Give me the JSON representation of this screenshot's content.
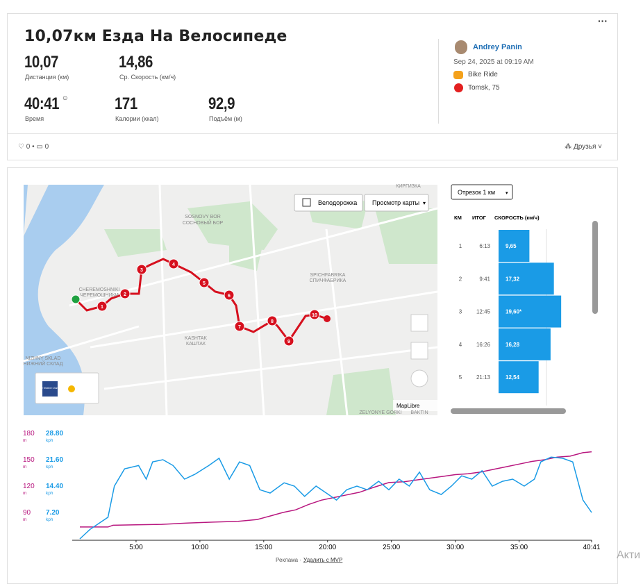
{
  "activity": {
    "title": "10,07км Езда На Велосипеде",
    "stats": [
      {
        "value": "10,07",
        "label": "Дистанция (км)"
      },
      {
        "value": "14,86",
        "label": "Ср. Скорость (км/ч)"
      },
      {
        "value": "40:41",
        "label": "Время"
      },
      {
        "value": "171",
        "label": "Калории (ккал)"
      },
      {
        "value": "92,9",
        "label": "Подъём (м)"
      }
    ]
  },
  "athlete": {
    "name": "Andrey Panin",
    "date": "Sep 24, 2025 at 09:19 AM",
    "sport": "Bike Ride",
    "location": "Tomsk, 75"
  },
  "social": {
    "likes": "0",
    "comments": "0",
    "visibility": "Друзья"
  },
  "map": {
    "buttons": [
      "Велодорожка",
      "Просмотр карты"
    ],
    "places": [
      "КИРГИЗКА",
      "SOSNOVY BOR",
      "СОСНОВЫЙ БОР",
      "CHEREMOSHNIKI",
      "ЧЕРЕМОШНИКИ",
      "SPICHFABRIKA",
      "СПИЧФАБРИКА",
      "KASHTAK",
      "КАШТАК",
      "NIZHNY SKLAD",
      "НИЖНИЙ СКЛАД",
      "ZELYONYE GORKI",
      "BAKTIN"
    ],
    "markers": [
      "1",
      "2",
      "3",
      "4",
      "5",
      "6",
      "7",
      "8",
      "9",
      "10"
    ],
    "weather": "The Weather Channel",
    "attribution": "MapLibre"
  },
  "splits": {
    "selector": "Отрезок 1 км",
    "headers": [
      "КМ",
      "ИТОГ",
      "СКОРОСТЬ (км/ч)"
    ],
    "rows": [
      {
        "km": "1",
        "time": "6:13",
        "speed": 9.65,
        "speed_label": "9,65"
      },
      {
        "km": "2",
        "time": "9:41",
        "speed": 17.32,
        "speed_label": "17,32"
      },
      {
        "km": "3",
        "time": "12:45",
        "speed": 19.6,
        "speed_label": "19,60*"
      },
      {
        "km": "4",
        "time": "16:26",
        "speed": 16.28,
        "speed_label": "16,28"
      },
      {
        "km": "5",
        "time": "21:13",
        "speed": 12.54,
        "speed_label": "12,54"
      }
    ]
  },
  "chart_data": {
    "type": "line",
    "y_unit": "m",
    "y2_unit": "kph",
    "xlim": [
      0,
      40.68
    ],
    "xticks": [
      {
        "value": 5,
        "label": "5:00"
      },
      {
        "value": 10,
        "label": "10:00"
      },
      {
        "value": 15,
        "label": "15:00"
      },
      {
        "value": 20,
        "label": "20:00"
      },
      {
        "value": 25,
        "label": "25:00"
      },
      {
        "value": 30,
        "label": "30:00"
      },
      {
        "value": 35,
        "label": "35:00"
      },
      {
        "value": 40.68,
        "label": "40:41"
      }
    ],
    "ylim": [
      60,
      180
    ],
    "yticks": [
      90,
      120,
      150,
      180
    ],
    "y2lim": [
      0,
      28.8
    ],
    "y2ticks": [
      {
        "value": 7.2,
        "label": "7.20"
      },
      {
        "value": 14.4,
        "label": "14.40"
      },
      {
        "value": 21.6,
        "label": "21.60"
      },
      {
        "value": 28.8,
        "label": "28.80"
      }
    ],
    "series": [
      {
        "color": "#b8177f",
        "x": [
          0.6,
          2.8,
          3.2,
          5,
          7,
          9,
          11,
          13,
          14.5,
          15.5,
          16.5,
          17.5,
          18.5,
          19.5,
          20.5,
          21.5,
          22.5,
          23.5,
          24.8,
          26,
          27,
          28,
          29,
          30,
          31,
          32,
          33,
          34,
          35,
          36,
          37,
          38,
          39,
          40,
          40.68
        ],
        "values": [
          73.5,
          73.5,
          75.5,
          76,
          76.5,
          78,
          79,
          80,
          82,
          86,
          90,
          93,
          99,
          104,
          107,
          110,
          113,
          118,
          124,
          125,
          127,
          129,
          131,
          133,
          134,
          136,
          139,
          142,
          145,
          148,
          150,
          153,
          154,
          158,
          159
        ]
      },
      {
        "color": "#1a9be6",
        "axis": "y2",
        "x": [
          0.6,
          1.4,
          2.8,
          3.3,
          4.1,
          5.2,
          5.8,
          6.3,
          7.1,
          7.9,
          8.8,
          9.6,
          10.7,
          11.5,
          12.3,
          13.1,
          13.9,
          14.7,
          15.5,
          16.6,
          17.4,
          18.2,
          19.1,
          19.9,
          20.7,
          21.5,
          22.3,
          23.1,
          24,
          24.8,
          25.6,
          26.4,
          27.2,
          28,
          28.9,
          29.7,
          30.5,
          31.3,
          32.1,
          32.9,
          33.7,
          34.5,
          35.4,
          36.2,
          36.7,
          37.5,
          38.4,
          39.2,
          40,
          40.68
        ],
        "values": [
          0,
          2.6,
          5.9,
          14.4,
          19.1,
          20,
          16.3,
          21,
          21.6,
          20,
          16.3,
          17.6,
          20,
          22,
          16.3,
          21,
          20,
          13.4,
          12.5,
          15.3,
          14.4,
          11.6,
          14.4,
          12.5,
          10.6,
          13.4,
          14.4,
          13.4,
          15.7,
          13.4,
          16.3,
          14.4,
          18.2,
          13.4,
          12.1,
          14.4,
          17.2,
          16.3,
          18.6,
          14.4,
          15.7,
          16.3,
          14.4,
          16.3,
          21,
          22.3,
          22,
          21,
          10.6,
          7.2
        ]
      }
    ]
  },
  "footer": {
    "ad": "Реклама ·",
    "ad_link": "Удалить с MVP",
    "overlay": "Акти"
  }
}
